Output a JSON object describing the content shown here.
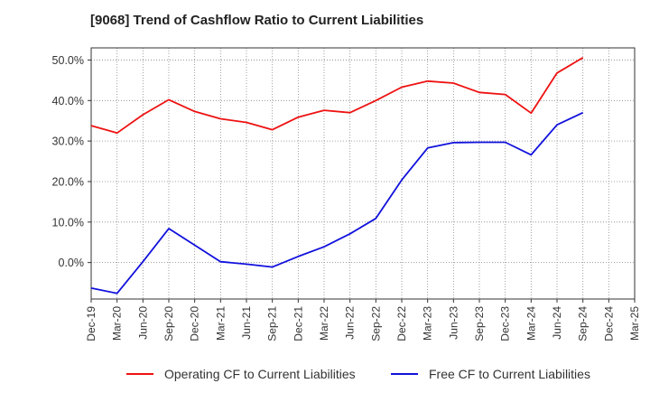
{
  "chart_data": {
    "type": "line",
    "title": "[9068]  Trend of Cashflow Ratio to Current Liabilities",
    "xlabel": "",
    "ylabel": "",
    "x": [
      "Dec-19",
      "Mar-20",
      "Jun-20",
      "Sep-20",
      "Dec-20",
      "Mar-21",
      "Jun-21",
      "Sep-21",
      "Dec-21",
      "Mar-22",
      "Jun-22",
      "Sep-22",
      "Dec-22",
      "Mar-23",
      "Jun-23",
      "Sep-23",
      "Dec-23",
      "Mar-24",
      "Jun-24",
      "Sep-24",
      "Dec-24",
      "Mar-25"
    ],
    "ylim": [
      -9,
      53
    ],
    "yticks": [
      0,
      10,
      20,
      30,
      40,
      50
    ],
    "ytick_labels": [
      "0.0%",
      "10.0%",
      "20.0%",
      "30.0%",
      "40.0%",
      "50.0%"
    ],
    "grid": true,
    "legend_position": "bottom",
    "series": [
      {
        "name": "Operating CF to Current Liabilities",
        "color": "#ee1111",
        "values": [
          33.8,
          32.0,
          36.5,
          40.2,
          37.3,
          35.5,
          34.6,
          32.8,
          35.9,
          37.6,
          37.0,
          40.0,
          43.3,
          44.8,
          44.3,
          42.0,
          41.5,
          36.9,
          46.8,
          50.6,
          null,
          null
        ]
      },
      {
        "name": "Free CF to Current Liabilities",
        "color": "#1111dd",
        "values": [
          -6.3,
          -7.6,
          0.2,
          8.4,
          4.3,
          0.2,
          -0.4,
          -1.1,
          1.5,
          3.9,
          7.1,
          10.9,
          20.4,
          28.3,
          29.6,
          29.7,
          29.7,
          26.6,
          34.0,
          37.0,
          null,
          null
        ]
      }
    ]
  }
}
